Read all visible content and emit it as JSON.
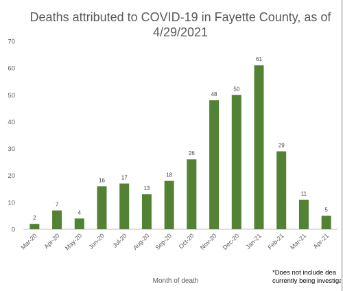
{
  "chart_data": {
    "type": "bar",
    "title_lines": [
      "Deaths attributed to COVID-19 in Fayette County, as of",
      "4/29/2021"
    ],
    "xlabel": "Month of death",
    "ylabel": "",
    "categories": [
      "Mar-20",
      "Apr-20",
      "May-20",
      "Jun-20",
      "Jul-20",
      "Aug-20",
      "Sep-20",
      "Oct-20",
      "Nov-20",
      "Dec-20",
      "Jan-21",
      "Feb-21",
      "Mar-21",
      "Apr-21"
    ],
    "values": [
      2,
      7,
      4,
      16,
      17,
      13,
      18,
      26,
      48,
      50,
      61,
      29,
      11,
      5
    ],
    "data_labels": [
      "2",
      "7",
      "4",
      "16",
      "17",
      "13",
      "18",
      "26",
      "48",
      "50",
      "61",
      "29",
      "11",
      "5"
    ],
    "y_ticks": [
      "0",
      "10",
      "20",
      "30",
      "40",
      "50",
      "60",
      "70"
    ],
    "ylim": [
      0,
      70
    ],
    "grid": false,
    "legend": "none",
    "bar_color": "#548235",
    "footnote_lines": [
      "*Does not include dea",
      "currently being investiga"
    ]
  }
}
